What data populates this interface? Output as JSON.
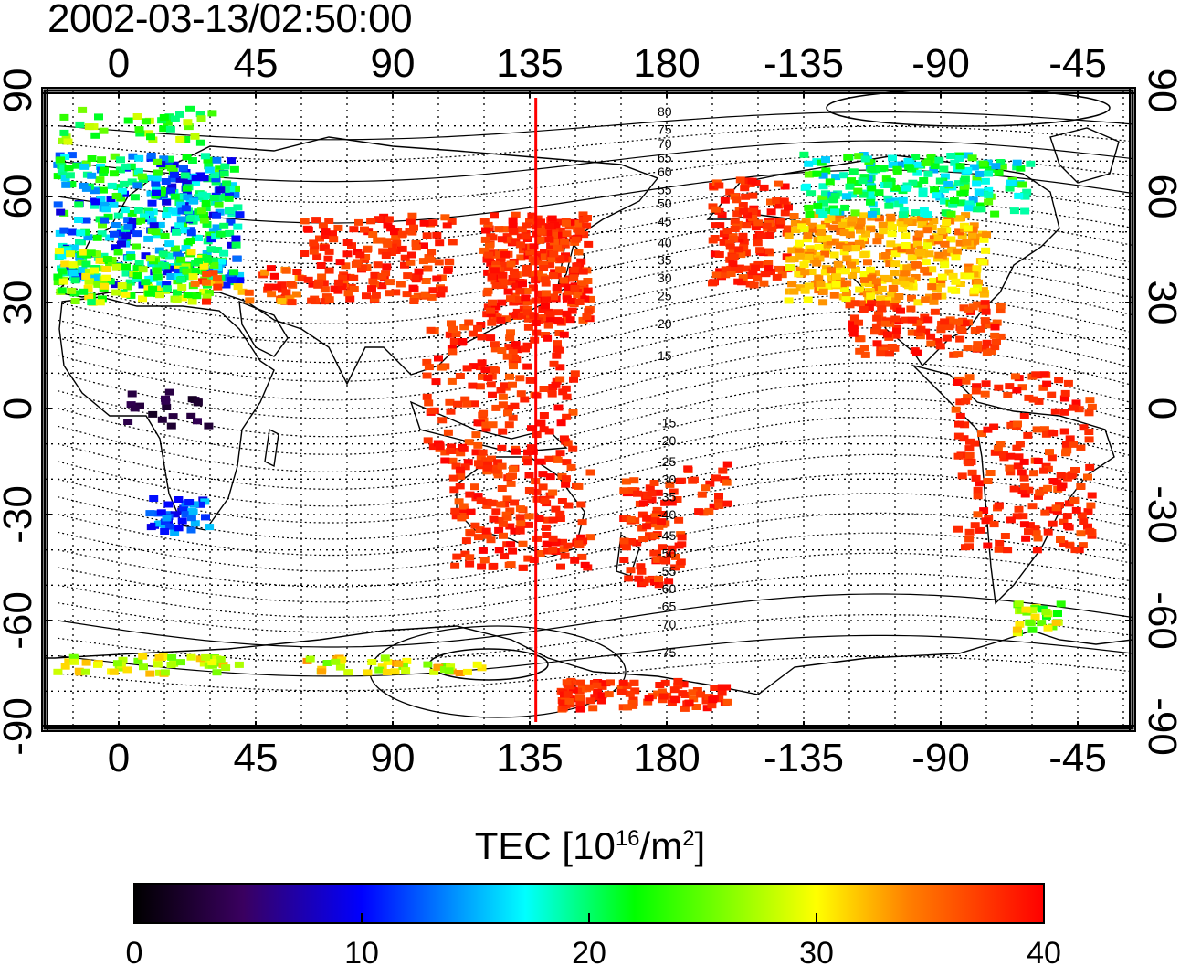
{
  "timestamp": "2002-03-13/02:50:00",
  "axes": {
    "lon_ticks": [
      "0",
      "45",
      "90",
      "135",
      "180",
      "-135",
      "-90",
      "-45"
    ],
    "lat_ticks": [
      "90",
      "60",
      "30",
      "0",
      "-30",
      "-60",
      "-90"
    ]
  },
  "contour_labels": [
    "80",
    "75",
    "70",
    "65",
    "60",
    "55",
    "50",
    "45",
    "40",
    "35",
    "30",
    "25",
    "20",
    "15",
    "-15",
    "-20",
    "-25",
    "-30",
    "-35",
    "-40",
    "-45",
    "-50",
    "-55",
    "-60",
    "-65",
    "-70",
    "-75"
  ],
  "reference_line": {
    "longitude": 137,
    "color": "#ff0000"
  },
  "colorbar": {
    "label_prefix": "TEC  [10",
    "label_exp1": "16",
    "label_mid": "/m",
    "label_exp2": "2",
    "label_suffix": "]",
    "min": 0,
    "max": 40,
    "tick_labels": [
      "0",
      "10",
      "20",
      "30",
      "40"
    ],
    "colors": [
      "#000000",
      "#3a0060",
      "#0000ff",
      "#00ffff",
      "#00ff00",
      "#ffff00",
      "#ff8000",
      "#ff0000"
    ]
  }
}
